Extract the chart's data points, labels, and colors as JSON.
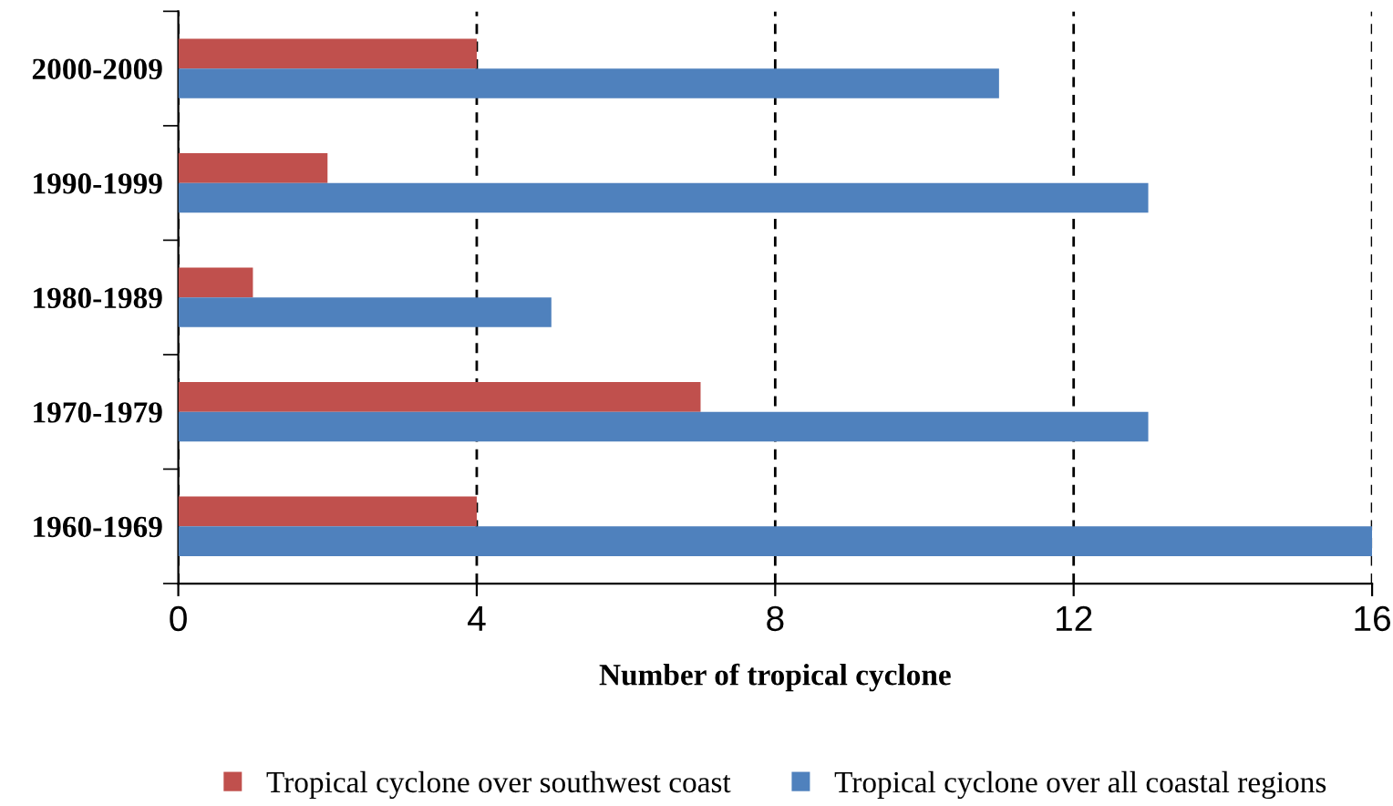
{
  "chart_data": {
    "type": "bar",
    "orientation": "horizontal",
    "categories": [
      "2000-2009",
      "1990-1999",
      "1980-1989",
      "1970-1979",
      "1960-1969"
    ],
    "series": [
      {
        "name": "Tropical cyclone over southwest coast",
        "color": "#c0504d",
        "values": [
          4,
          2,
          1,
          7,
          4
        ]
      },
      {
        "name": "Tropical cyclone over all coastal regions",
        "color": "#4f81bd",
        "values": [
          11,
          13,
          5,
          13,
          16
        ]
      }
    ],
    "xlabel": "Number of tropical cyclone",
    "xlim": [
      0,
      16
    ],
    "xticks": [
      0,
      4,
      8,
      12,
      16
    ],
    "grid": "x",
    "legend": "bottom"
  }
}
